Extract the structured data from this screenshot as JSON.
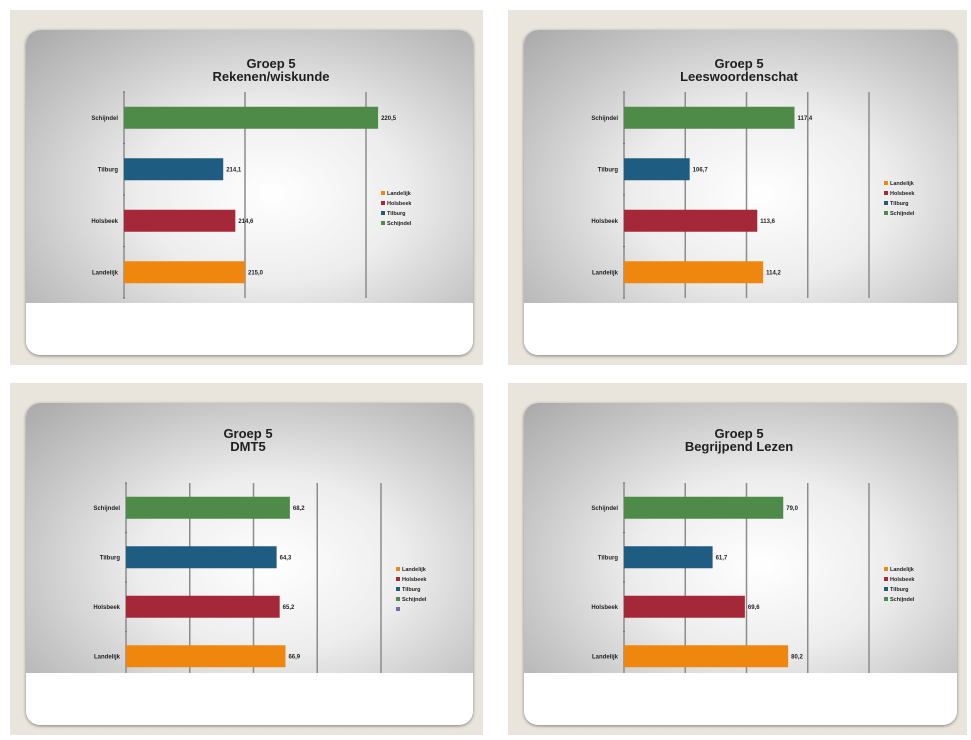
{
  "chart_data": [
    {
      "type": "bar",
      "orientation": "horizontal",
      "title": [
        "Groep 5",
        "Rekenen/wiskunde"
      ],
      "categories": [
        "Landelijk",
        "Holsbeek",
        "Tilburg",
        "Schijndel"
      ],
      "values": [
        215.0,
        214.6,
        214.1,
        220.5
      ],
      "value_labels": [
        "215,0",
        "214,6",
        "214,1",
        "220,5"
      ],
      "xlim": [
        210,
        220
      ],
      "ticks": [
        "210",
        "215",
        "220"
      ],
      "gridlines": true,
      "legend": "right",
      "legend_entries": [
        "Landelijk",
        "Holsbeek",
        "Tilburg",
        "Schijndel"
      ]
    },
    {
      "type": "bar",
      "orientation": "horizontal",
      "title": [
        "Groep 5",
        "Leeswoordenschat"
      ],
      "categories": [
        "Landelijk",
        "Holsbeek",
        "Tilburg",
        "Schijndel"
      ],
      "values": [
        114.2,
        113.6,
        106.7,
        117.4
      ],
      "value_labels": [
        "114,2",
        "113,6",
        "106,7",
        "117,4"
      ],
      "xlim": [
        100,
        125
      ],
      "ticks": [
        "100",
        "105",
        "110",
        "115",
        "125"
      ],
      "gridlines": true,
      "legend": "right",
      "legend_entries": [
        "Landelijk",
        "Holsbeek",
        "Tilburg",
        "Schijndel"
      ]
    },
    {
      "type": "bar",
      "orientation": "horizontal",
      "title": [
        "Groep 5",
        "DMT5"
      ],
      "categories": [
        "Landelijk",
        "Holsbeek",
        "Tilburg",
        "Schijndel"
      ],
      "values": [
        66.9,
        65.2,
        64.3,
        68.2
      ],
      "value_labels": [
        "66,9",
        "65,2",
        "64,3",
        "68,2"
      ],
      "xlim": [
        20,
        95
      ],
      "ticks": [
        "20",
        "75",
        "80",
        "85",
        "95"
      ],
      "gridlines": true,
      "legend": "right",
      "legend_entries": [
        "Landelijk",
        "Holsbeek",
        "Tilburg",
        "Schijndel",
        ""
      ]
    },
    {
      "type": "bar",
      "orientation": "horizontal",
      "title": [
        "Groep 5",
        "Begrijpend Lezen"
      ],
      "categories": [
        "Landelijk",
        "Holsbeek",
        "Tilburg",
        "Schijndel"
      ],
      "values": [
        80.2,
        69.6,
        61.7,
        79.0
      ],
      "value_labels": [
        "80,2",
        "69,6",
        "61,7",
        "79,0"
      ],
      "xlim": [
        40,
        100
      ],
      "ticks": [
        "40",
        "60",
        "72",
        "80",
        "90"
      ],
      "gridlines": true,
      "legend": "right",
      "legend_entries": [
        "Landelijk",
        "Holsbeek",
        "Tilburg",
        "Schijndel"
      ]
    }
  ],
  "colors": {
    "Landelijk": "#ef870f",
    "Holsbeek": "#a52838",
    "Tilburg": "#1f5c82",
    "Schijndel": "#4e8a48",
    "extra": "#7a6aa6"
  }
}
